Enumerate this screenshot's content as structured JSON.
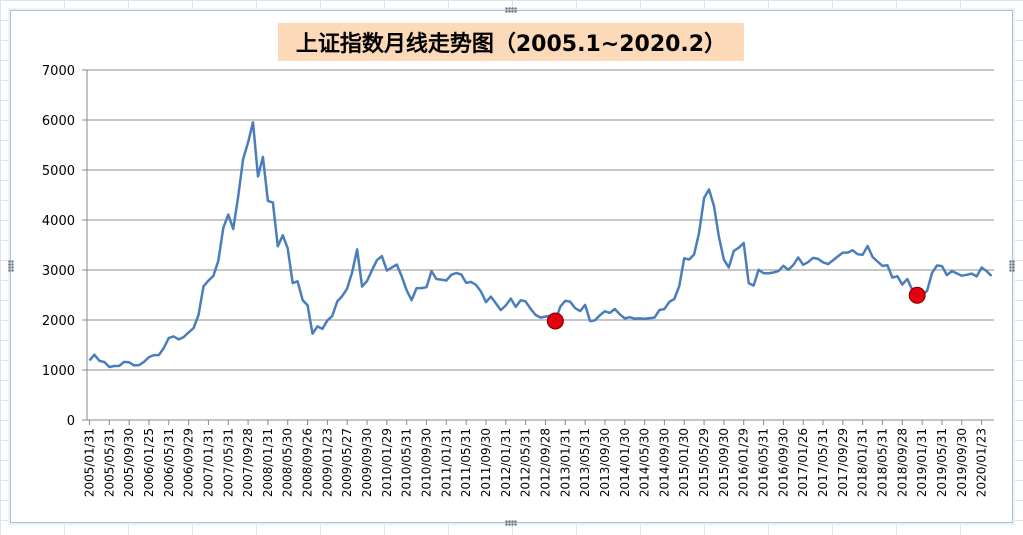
{
  "chart_data": {
    "type": "line",
    "title": "上证指数月线走势图（2005.1~2020.2）",
    "xlabel": "",
    "ylabel": "",
    "ylim": [
      0,
      7000
    ],
    "yticks": [
      "0",
      "1000",
      "2000",
      "3000",
      "4000",
      "5000",
      "6000",
      "7000"
    ],
    "grid": true,
    "legend": "none",
    "line_color": "#4a7ebb",
    "marker_color": "#e3000f",
    "x_tick_labels": [
      "2005/01/31",
      "2005/05/31",
      "2005/09/30",
      "2006/01/25",
      "2006/05/31",
      "2006/09/29",
      "2007/01/31",
      "2007/05/31",
      "2007/09/28",
      "2008/01/31",
      "2008/05/30",
      "2008/09/26",
      "2009/01/23",
      "2009/05/27",
      "2009/09/30",
      "2010/01/29",
      "2010/05/31",
      "2010/09/30",
      "2011/01/31",
      "2011/05/31",
      "2011/09/30",
      "2012/01/31",
      "2012/05/31",
      "2012/09/28",
      "2013/01/31",
      "2013/05/31",
      "2013/09/30",
      "2014/01/30",
      "2014/05/30",
      "2014/09/30",
      "2015/01/30",
      "2015/05/29",
      "2015/09/30",
      "2016/01/29",
      "2016/05/31",
      "2016/09/30",
      "2017/01/26",
      "2017/05/31",
      "2017/09/29",
      "2018/01/31",
      "2018/05/31",
      "2018/09/28",
      "2019/01/31",
      "2019/05/31",
      "2019/09/30",
      "2020/01/23"
    ],
    "values": [
      1191,
      1306,
      1181,
      1160,
      1060,
      1080,
      1083,
      1162,
      1155,
      1092,
      1099,
      1161,
      1258,
      1299,
      1298,
      1440,
      1641,
      1672,
      1612,
      1658,
      1752,
      1837,
      2099,
      2675,
      2786,
      2881,
      3183,
      3841,
      4109,
      3821,
      4471,
      5218,
      5552,
      5954,
      4871,
      5261,
      4383,
      4348,
      3473,
      3693,
      3433,
      2737,
      2775,
      2397,
      2293,
      1729,
      1871,
      1821,
      1991,
      2082,
      2373,
      2477,
      2632,
      2959,
      3412,
      2667,
      2779,
      2996,
      3196,
      3277,
      2989,
      3051,
      3109,
      2871,
      2592,
      2398,
      2638,
      2638,
      2656,
      2979,
      2820,
      2808,
      2791,
      2905,
      2940,
      2911,
      2743,
      2762,
      2701,
      2568,
      2359,
      2468,
      2333,
      2199,
      2292,
      2428,
      2263,
      2396,
      2373,
      2225,
      2103,
      2047,
      2068,
      2086,
      1980,
      2269,
      2385,
      2366,
      2236,
      2177,
      2301,
      1979,
      1994,
      2098,
      2175,
      2141,
      2220,
      2115,
      2033,
      2056,
      2026,
      2033,
      2026,
      2039,
      2048,
      2202,
      2217,
      2364,
      2420,
      2683,
      3235,
      3210,
      3310,
      3748,
      4442,
      4612,
      4277,
      3664,
      3206,
      3053,
      3382,
      3446,
      3540,
      2738,
      2688,
      3004,
      2938,
      2932,
      2950,
      2979,
      3085,
      3005,
      3100,
      3250,
      3104,
      3159,
      3241,
      3223,
      3155,
      3117,
      3193,
      3273,
      3349,
      3349,
      3393,
      3317,
      3307,
      3481,
      3259,
      3169,
      3082,
      3095,
      2847,
      2876,
      2710,
      2821,
      2603,
      2588,
      2494,
      2585,
      2941,
      3090,
      3078,
      2899,
      2979,
      2932,
      2886,
      2905,
      2929,
      2872,
      3050,
      2977,
      2880
    ],
    "highlight_points": [
      {
        "date": "2012/11",
        "value": 1980
      },
      {
        "date": "2018/12",
        "value": 2494
      }
    ]
  }
}
